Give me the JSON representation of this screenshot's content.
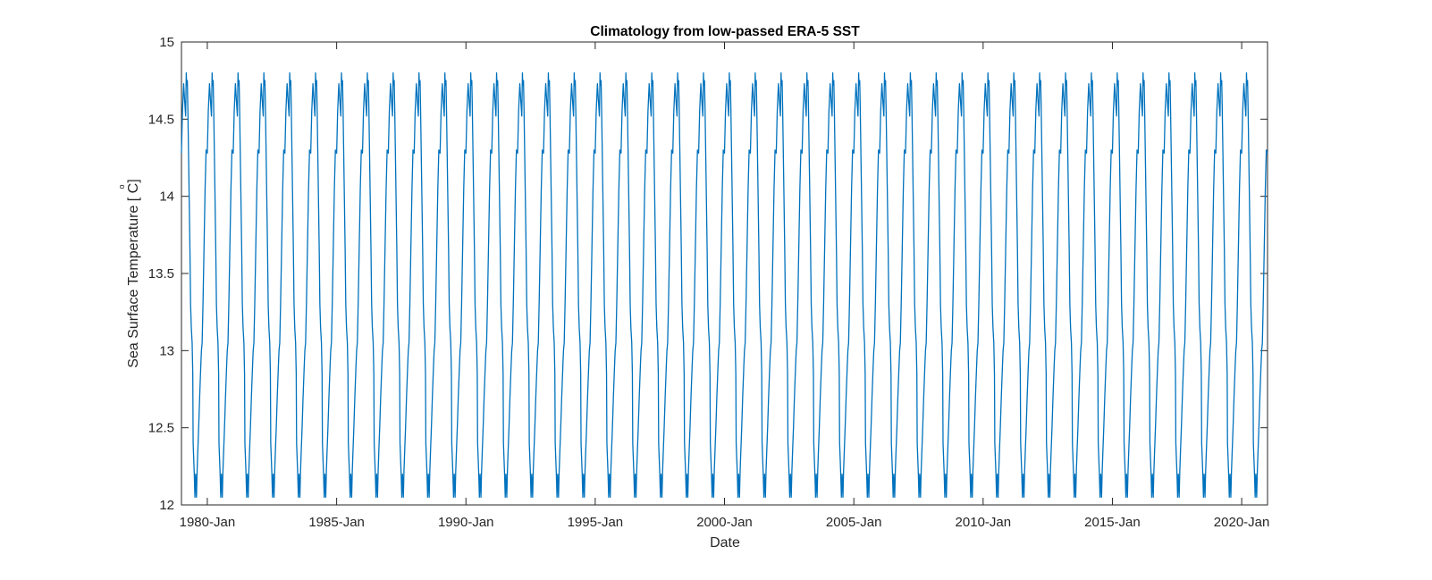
{
  "chart_data": {
    "type": "line",
    "title": "Climatology from low-passed ERA-5 SST",
    "xlabel": "Date",
    "ylabel": "Sea Surface Temperature [ C]",
    "ylabel_degree_symbol": "o",
    "x_start": "1979-01-01",
    "x_end": "2020-12-31",
    "ylim": [
      12,
      15
    ],
    "yticks": [
      12,
      12.5,
      13,
      13.5,
      14,
      14.5,
      15
    ],
    "ytick_labels": [
      "12",
      "12.5",
      "13",
      "13.5",
      "14",
      "14.5",
      "15"
    ],
    "xticks": [
      "1980-01-01",
      "1985-01-01",
      "1990-01-01",
      "1995-01-01",
      "2000-01-01",
      "2005-01-01",
      "2010-01-01",
      "2015-01-01",
      "2020-01-01"
    ],
    "xtick_labels": [
      "1980-Jan",
      "1985-Jan",
      "1990-Jan",
      "1995-Jan",
      "2000-Jan",
      "2005-Jan",
      "2010-Jan",
      "2015-Jan",
      "2020-Jan"
    ],
    "grid": false,
    "series": [
      {
        "color": "#0072BD",
        "repeats_annually": true,
        "annual_cycle": {
          "x": [
            "Jan 1",
            "Jan 15",
            "Feb 1",
            "Feb 15",
            "Mar 1",
            "Mar 10",
            "Mar 15",
            "Mar 25",
            "Apr 1",
            "Apr 15",
            "May 1",
            "May 10",
            "May 20",
            "Jun 1",
            "Jun 10",
            "Jun 15",
            "Jul 1",
            "Jul 10",
            "Jul 20",
            "Aug 1",
            "Aug 10",
            "Aug 20",
            "Sep 1",
            "Sep 15",
            "Oct 1",
            "Oct 10",
            "Oct 20",
            "Nov 1",
            "Nov 15",
            "Dec 1",
            "Dec 15",
            "Dec 31"
          ],
          "y": [
            14.28,
            14.55,
            14.73,
            14.62,
            14.52,
            14.8,
            14.72,
            14.75,
            14.58,
            14.15,
            13.65,
            13.3,
            13.15,
            13.05,
            12.85,
            12.4,
            12.2,
            12.05,
            12.2,
            12.05,
            12.22,
            12.35,
            12.5,
            12.7,
            12.9,
            13.0,
            13.05,
            13.3,
            13.65,
            14.05,
            14.3,
            14.28
          ]
        }
      }
    ]
  }
}
